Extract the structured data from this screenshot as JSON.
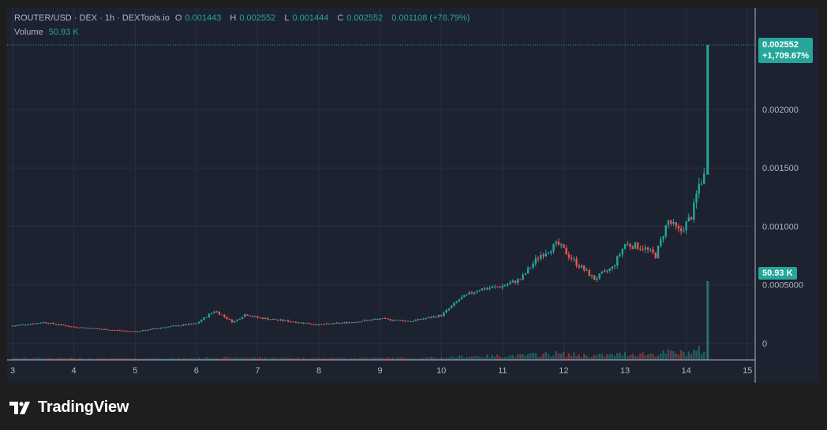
{
  "header": {
    "symbol": "ROUTER/USD · DEX · 1h · DEXTools.io",
    "o_label": "O",
    "o_value": "0.001443",
    "h_label": "H",
    "h_value": "0.002552",
    "l_label": "L",
    "l_value": "0.001444",
    "c_label": "C",
    "c_value": "0.002552",
    "change": "0.001108 (+76.79%)",
    "volume_label": "Volume",
    "volume_value": "50.93 K"
  },
  "price_badge": {
    "price": "0.002552",
    "change": "+1,709.67%"
  },
  "volume_badge": "50.93 K",
  "brand": {
    "name": "TradingView"
  },
  "colors": {
    "up": "#26a69a",
    "down": "#ef5350",
    "background": "#1c2230",
    "grid": "#2a3040"
  },
  "chart_data": {
    "type": "candlestick",
    "x_ticks": [
      "3",
      "4",
      "5",
      "6",
      "7",
      "8",
      "9",
      "10",
      "11",
      "12",
      "13",
      "14",
      "15"
    ],
    "y_ticks": [
      "0.002000",
      "0.001500",
      "0.001000",
      "0.0005000",
      "0"
    ],
    "ylim": [
      0,
      0.0027
    ],
    "last": {
      "open": 0.001443,
      "high": 0.002552,
      "low": 0.001444,
      "close": 0.002552,
      "volume": "50.93 K"
    },
    "daily_close": [
      {
        "day": 3,
        "close": 0.00015
      },
      {
        "day": 3.5,
        "close": 0.00018
      },
      {
        "day": 4,
        "close": 0.00014
      },
      {
        "day": 5,
        "close": 0.0001
      },
      {
        "day": 5.5,
        "close": 0.00014
      },
      {
        "day": 6,
        "close": 0.00017
      },
      {
        "day": 6.3,
        "close": 0.00028
      },
      {
        "day": 6.6,
        "close": 0.00018
      },
      {
        "day": 6.8,
        "close": 0.00025
      },
      {
        "day": 7,
        "close": 0.00022
      },
      {
        "day": 7.5,
        "close": 0.00019
      },
      {
        "day": 8,
        "close": 0.00016
      },
      {
        "day": 8.5,
        "close": 0.00018
      },
      {
        "day": 9,
        "close": 0.00021
      },
      {
        "day": 9.5,
        "close": 0.00019
      },
      {
        "day": 10,
        "close": 0.00024
      },
      {
        "day": 10.3,
        "close": 0.00038
      },
      {
        "day": 10.6,
        "close": 0.00046
      },
      {
        "day": 11,
        "close": 0.00049
      },
      {
        "day": 11.3,
        "close": 0.00055
      },
      {
        "day": 11.6,
        "close": 0.00075
      },
      {
        "day": 11.9,
        "close": 0.00085
      },
      {
        "day": 12.2,
        "close": 0.00069
      },
      {
        "day": 12.5,
        "close": 0.00055
      },
      {
        "day": 12.8,
        "close": 0.00065
      },
      {
        "day": 13,
        "close": 0.00085
      },
      {
        "day": 13.3,
        "close": 0.00082
      },
      {
        "day": 13.5,
        "close": 0.00075
      },
      {
        "day": 13.7,
        "close": 0.00105
      },
      {
        "day": 13.9,
        "close": 0.00095
      },
      {
        "day": 14.1,
        "close": 0.0011
      },
      {
        "day": 14.2,
        "close": 0.00135
      },
      {
        "day": 14.3,
        "close": 0.00144
      },
      {
        "day": 14.35,
        "close": 0.002552
      }
    ]
  }
}
